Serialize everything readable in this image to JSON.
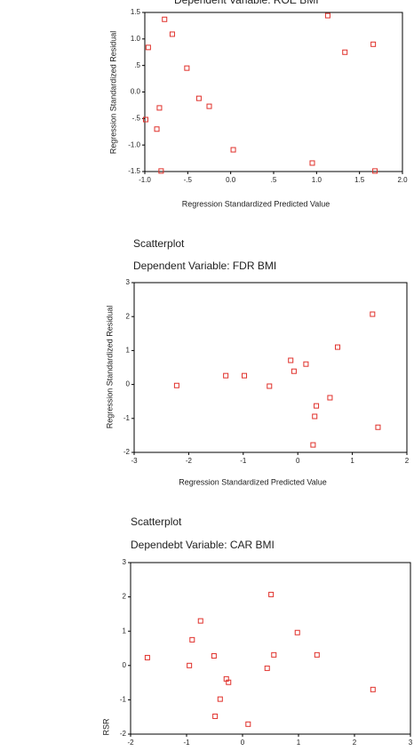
{
  "chart_data": [
    {
      "type": "scatter",
      "title": "Dependent Variable: ROE BMI",
      "x_label": "Regression Standardized Predicted Value",
      "y_label": "Regression Standardized Residual",
      "color": "#e0302a",
      "x": [
        -0.96,
        -0.77,
        -0.68,
        -0.51,
        -0.99,
        -0.83,
        -0.86,
        -0.81,
        -0.37,
        -0.25,
        0.03,
        0.95,
        1.13,
        1.33,
        1.66,
        1.68
      ],
      "values": [
        0.84,
        1.37,
        1.09,
        0.45,
        -0.52,
        -0.3,
        -0.7,
        -1.49,
        -0.12,
        -0.27,
        -1.09,
        -1.34,
        1.44,
        0.75,
        0.9,
        -1.49
      ],
      "xlim": [
        -1.0,
        2.0
      ],
      "xticks": [
        {
          "value": -1.0,
          "label": "-1.0"
        },
        {
          "value": -0.5,
          "label": "-.5"
        },
        {
          "value": 0,
          "label": "0.0"
        },
        {
          "value": 0.5,
          "label": ".5"
        },
        {
          "value": 1.0,
          "label": "1.0"
        },
        {
          "value": 1.5,
          "label": "1.5"
        },
        {
          "value": 2.0,
          "label": "2.0"
        }
      ],
      "ylim": [
        -1.5,
        1.5
      ],
      "yticks": [
        {
          "value": -1.5,
          "label": "-1.5"
        },
        {
          "value": -1.0,
          "label": "-1.0"
        },
        {
          "value": -0.5,
          "label": "-.5"
        },
        {
          "value": 0,
          "label": "0.0"
        },
        {
          "value": 0.5,
          "label": ".5"
        },
        {
          "value": 1.0,
          "label": "1.0"
        },
        {
          "value": 1.5,
          "label": "1.5"
        }
      ]
    },
    {
      "type": "scatter",
      "title": "Scatterplot",
      "subtitle": "Dependent Variable: FDR BMI",
      "x_label": "Regression Standardized Predicted Value",
      "y_label": "Regression Standardized Residual",
      "color": "#e0302a",
      "x": [
        -2.22,
        -1.32,
        -0.98,
        -0.52,
        -0.13,
        -0.07,
        0.15,
        0.34,
        0.31,
        0.59,
        0.28,
        0.73,
        1.37,
        1.47
      ],
      "values": [
        -0.03,
        0.26,
        0.26,
        -0.05,
        0.71,
        0.39,
        0.6,
        -0.63,
        -0.94,
        -0.39,
        -1.78,
        1.1,
        2.07,
        -1.26
      ],
      "xlim": [
        -3,
        2
      ],
      "xticks": [
        -3,
        -2,
        -1,
        0,
        1,
        2
      ],
      "ylim": [
        -2,
        3
      ],
      "yticks": [
        -2,
        -1,
        0,
        1,
        2,
        3
      ]
    },
    {
      "type": "scatter",
      "title": "Scatterplot",
      "subtitle": "Dependebt Variable: CAR BMI",
      "y_label": "RSR",
      "color": "#e0302a",
      "x": [
        -1.7,
        -0.75,
        -0.9,
        -0.95,
        -0.51,
        -0.29,
        -0.25,
        -0.4,
        -0.49,
        0.1,
        0.51,
        0.56,
        0.44,
        0.98,
        1.33,
        2.33
      ],
      "values": [
        0.23,
        1.3,
        0.75,
        0,
        0.28,
        -0.39,
        -0.49,
        -0.98,
        -1.48,
        -1.71,
        2.07,
        0.31,
        -0.08,
        0.96,
        0.31,
        -0.7
      ],
      "xlim": [
        -2,
        3
      ],
      "xticks": [
        -2,
        -1,
        0,
        1,
        2,
        3
      ],
      "ylim": [
        -2,
        3
      ],
      "yticks": [
        -2,
        -1,
        0,
        1,
        2,
        3
      ]
    }
  ]
}
